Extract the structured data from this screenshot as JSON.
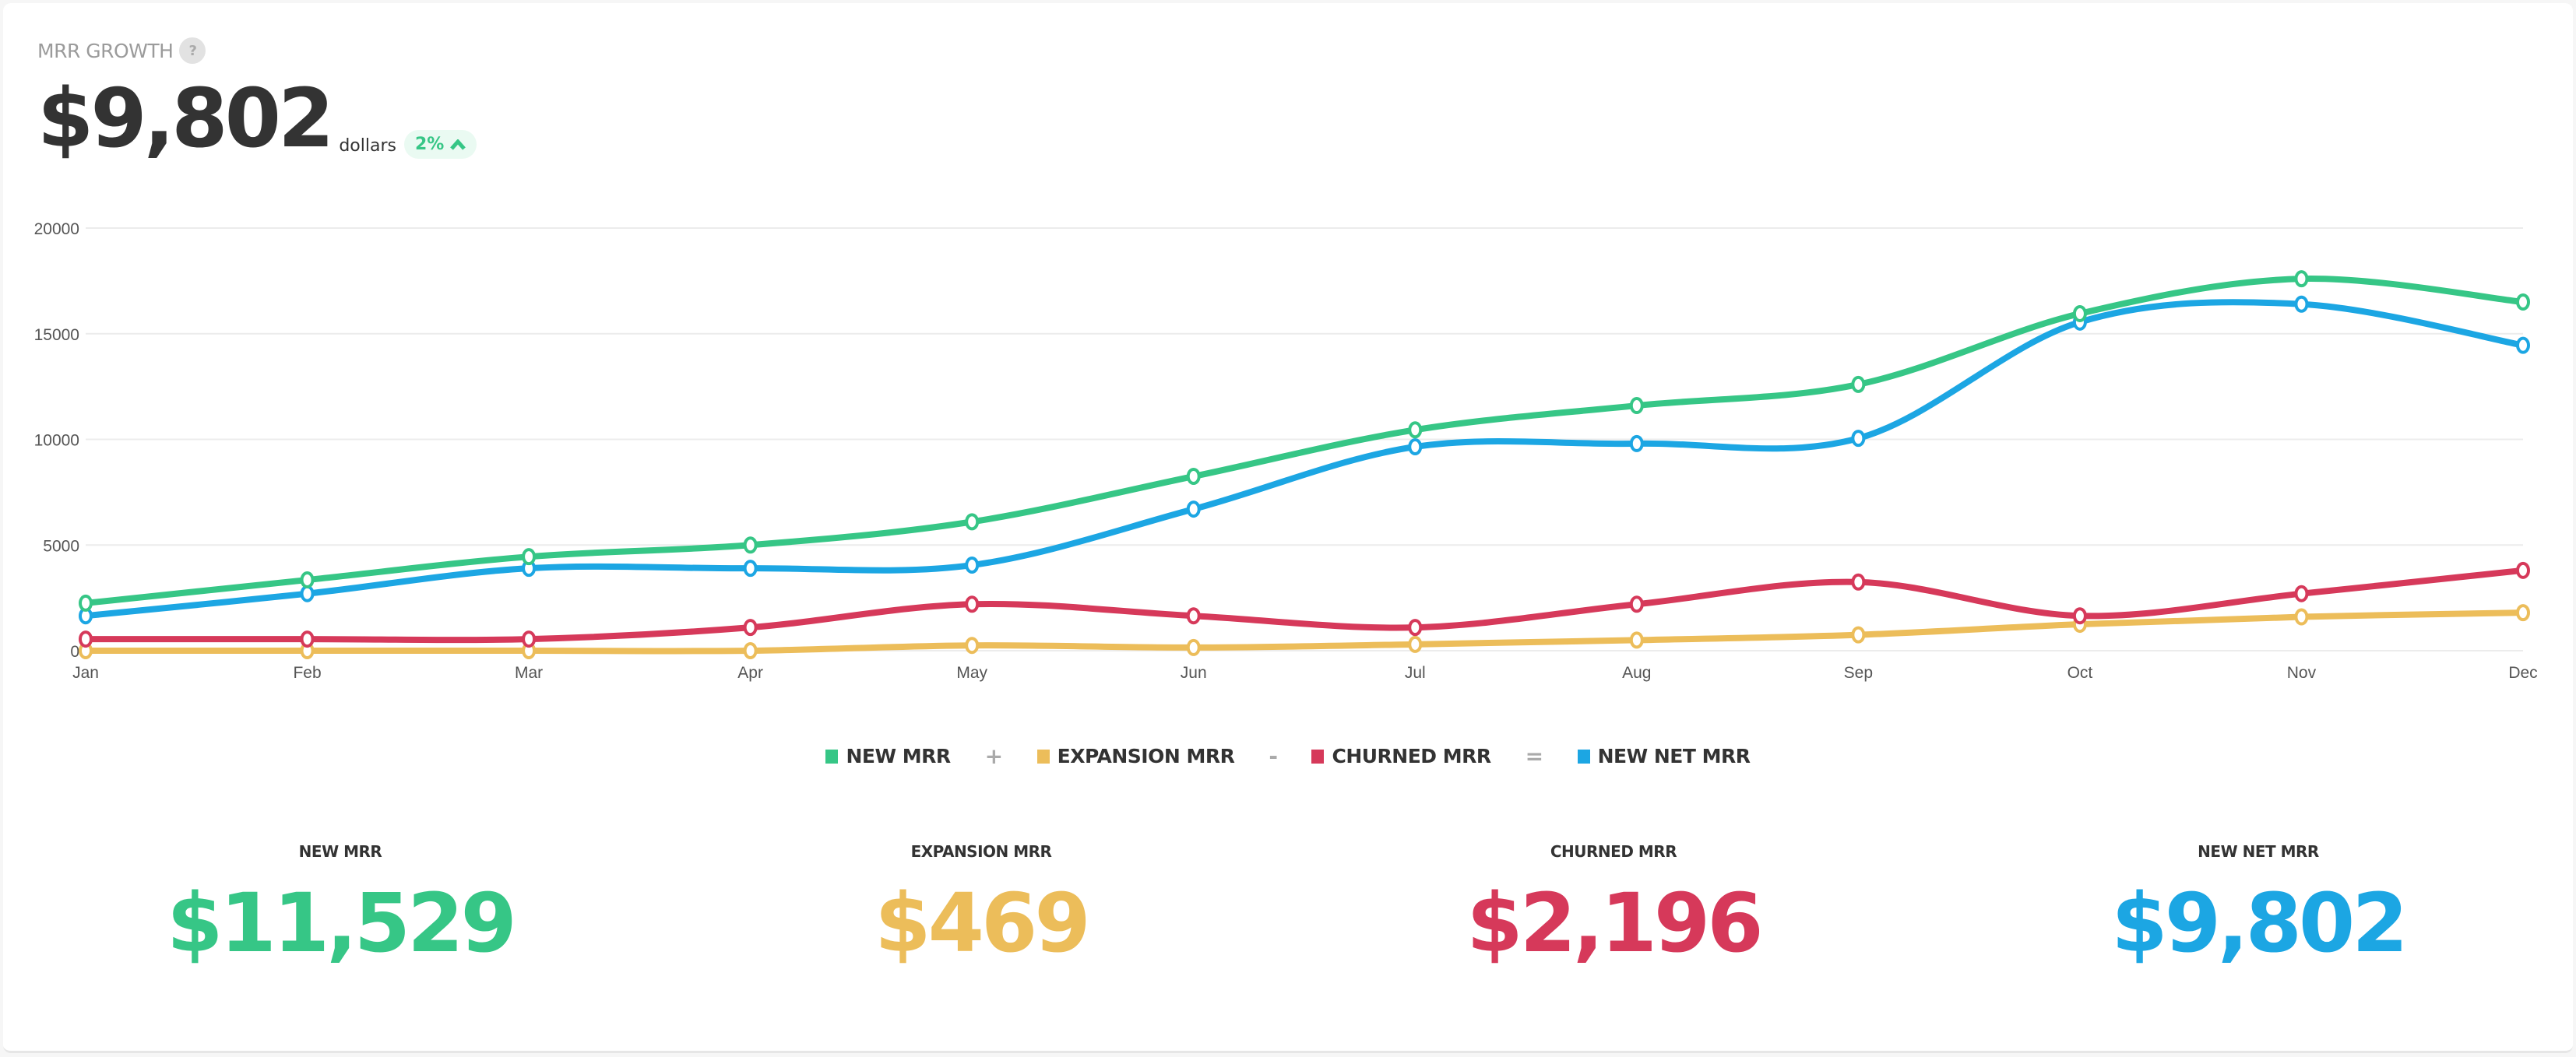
{
  "header": {
    "title": "MRR GROWTH",
    "help_icon": "?",
    "value": "$9,802",
    "unit": "dollars",
    "change": "2%",
    "change_icon": "chevron-up-icon",
    "change_color": "#36c686"
  },
  "chart_data": {
    "type": "line",
    "categories": [
      "Jan",
      "Feb",
      "Mar",
      "Apr",
      "May",
      "Jun",
      "Jul",
      "Aug",
      "Sep",
      "Oct",
      "Nov",
      "Dec"
    ],
    "ylim": [
      0,
      20000
    ],
    "yticks": [
      "0",
      "5000",
      "10000",
      "15000",
      "20000"
    ],
    "grid": true,
    "legend_position": "bottom",
    "series": [
      {
        "name": "NEW MRR",
        "color": "#36c686",
        "values": [
          2250,
          3350,
          4450,
          5000,
          6100,
          8250,
          10450,
          11600,
          12600,
          15950,
          17600,
          16500
        ]
      },
      {
        "name": "EXPANSION MRR",
        "color": "#ecbd5a",
        "values": [
          0,
          0,
          0,
          0,
          250,
          150,
          300,
          500,
          750,
          1250,
          1600,
          1800
        ]
      },
      {
        "name": "CHURNED MRR",
        "color": "#d6395a",
        "values": [
          550,
          550,
          550,
          1100,
          2200,
          1650,
          1100,
          2200,
          3250,
          1650,
          2700,
          3800
        ]
      },
      {
        "name": "NEW NET MRR",
        "color": "#1ca6e3",
        "values": [
          1650,
          2700,
          3900,
          3900,
          4050,
          6700,
          9650,
          9800,
          10050,
          15550,
          16400,
          14450
        ]
      }
    ]
  },
  "legend": {
    "ops": [
      "+",
      "-",
      "="
    ]
  },
  "stats": [
    {
      "label": "NEW MRR",
      "value": "$11,529",
      "color": "#36c686"
    },
    {
      "label": "EXPANSION MRR",
      "value": "$469",
      "color": "#ecbd5a"
    },
    {
      "label": "CHURNED MRR",
      "value": "$2,196",
      "color": "#d6395a"
    },
    {
      "label": "NEW NET MRR",
      "value": "$9,802",
      "color": "#1ca6e3"
    }
  ]
}
